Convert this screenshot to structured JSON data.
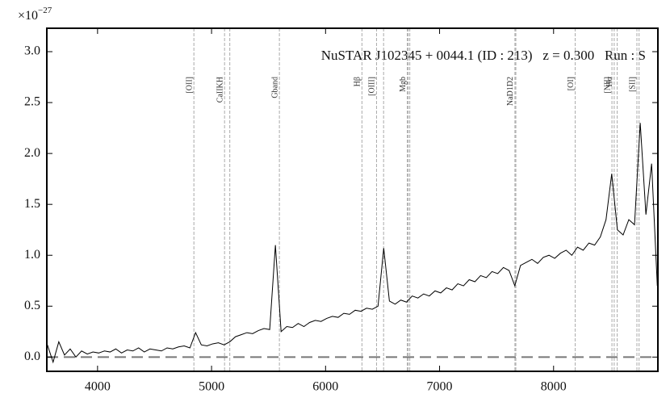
{
  "chart_data": {
    "type": "line",
    "title": "NuSTAR J102345 + 0044.1 (ID : 213)   z = 0.300   Run : S",
    "y_multiplier": {
      "base": "×10",
      "exponent": "−27"
    },
    "color": "#000000",
    "x": [
      3560,
      3610,
      3660,
      3710,
      3760,
      3810,
      3860,
      3910,
      3960,
      4010,
      4060,
      4110,
      4160,
      4210,
      4260,
      4310,
      4360,
      4410,
      4460,
      4510,
      4560,
      4610,
      4660,
      4710,
      4760,
      4810,
      4860,
      4910,
      4960,
      5010,
      5060,
      5110,
      5160,
      5210,
      5260,
      5310,
      5360,
      5410,
      5460,
      5510,
      5560,
      5610,
      5660,
      5710,
      5760,
      5810,
      5860,
      5910,
      5960,
      6010,
      6060,
      6110,
      6160,
      6210,
      6260,
      6310,
      6360,
      6410,
      6460,
      6510,
      6560,
      6610,
      6660,
      6710,
      6760,
      6810,
      6860,
      6910,
      6960,
      7010,
      7060,
      7110,
      7160,
      7210,
      7260,
      7310,
      7360,
      7410,
      7460,
      7510,
      7560,
      7610,
      7660,
      7710,
      7760,
      7810,
      7860,
      7910,
      7960,
      8010,
      8060,
      8110,
      8160,
      8210,
      8260,
      8310,
      8360,
      8410,
      8460,
      8510,
      8560,
      8610,
      8660,
      8710,
      8760,
      8810,
      8860,
      8910
    ],
    "values": [
      0.12,
      -0.05,
      0.15,
      0.02,
      0.08,
      0.0,
      0.06,
      0.03,
      0.05,
      0.04,
      0.06,
      0.05,
      0.08,
      0.04,
      0.07,
      0.06,
      0.09,
      0.05,
      0.08,
      0.07,
      0.06,
      0.09,
      0.08,
      0.1,
      0.11,
      0.09,
      0.24,
      0.12,
      0.11,
      0.13,
      0.14,
      0.12,
      0.15,
      0.2,
      0.22,
      0.24,
      0.23,
      0.26,
      0.28,
      0.27,
      1.1,
      0.25,
      0.3,
      0.29,
      0.33,
      0.3,
      0.34,
      0.36,
      0.35,
      0.38,
      0.4,
      0.39,
      0.43,
      0.42,
      0.46,
      0.45,
      0.48,
      0.47,
      0.5,
      1.07,
      0.55,
      0.52,
      0.56,
      0.54,
      0.6,
      0.58,
      0.62,
      0.6,
      0.65,
      0.63,
      0.68,
      0.66,
      0.72,
      0.7,
      0.76,
      0.74,
      0.8,
      0.78,
      0.84,
      0.82,
      0.88,
      0.85,
      0.7,
      0.9,
      0.93,
      0.96,
      0.92,
      0.98,
      1.0,
      0.97,
      1.02,
      1.05,
      1.0,
      1.08,
      1.05,
      1.12,
      1.1,
      1.18,
      1.35,
      1.8,
      1.25,
      1.2,
      1.35,
      1.3,
      2.3,
      1.4,
      1.9,
      0.7
    ],
    "xlim": [
      3555,
      8915
    ],
    "ylim": [
      -0.14,
      3.23
    ],
    "xticks": [
      4000,
      5000,
      6000,
      7000,
      8000
    ],
    "yticks": [
      {
        "value": 0,
        "label": "0.0"
      },
      0.5,
      {
        "value": 1,
        "label": "1.0"
      },
      1.5,
      {
        "value": 2,
        "label": "2.0"
      },
      2.5,
      {
        "value": 3,
        "label": "3.0"
      }
    ],
    "hline": 0,
    "annotations": [
      {
        "label": "[OII]",
        "x": [
          4845
        ]
      },
      {
        "label": "CaIIKH",
        "x": [
          5114,
          5160
        ]
      },
      {
        "label": "Gband",
        "x": [
          5595
        ]
      },
      {
        "label": "Hβ",
        "x": [
          6319
        ]
      },
      {
        "label": "[OIII]",
        "x": [
          6447,
          6509
        ]
      },
      {
        "label": "Mgb",
        "x": [
          6717,
          6725,
          6739
        ]
      },
      {
        "label": "NaD1D2",
        "x": [
          7661,
          7669
        ]
      },
      {
        "label": "[OI]",
        "x": [
          8190
        ]
      },
      {
        "label": "Hα",
        "x": [
          8532
        ]
      },
      {
        "label": "[NII]",
        "x": [
          8512,
          8558
        ]
      },
      {
        "label": "[SII]",
        "x": [
          8731,
          8750
        ]
      }
    ]
  }
}
